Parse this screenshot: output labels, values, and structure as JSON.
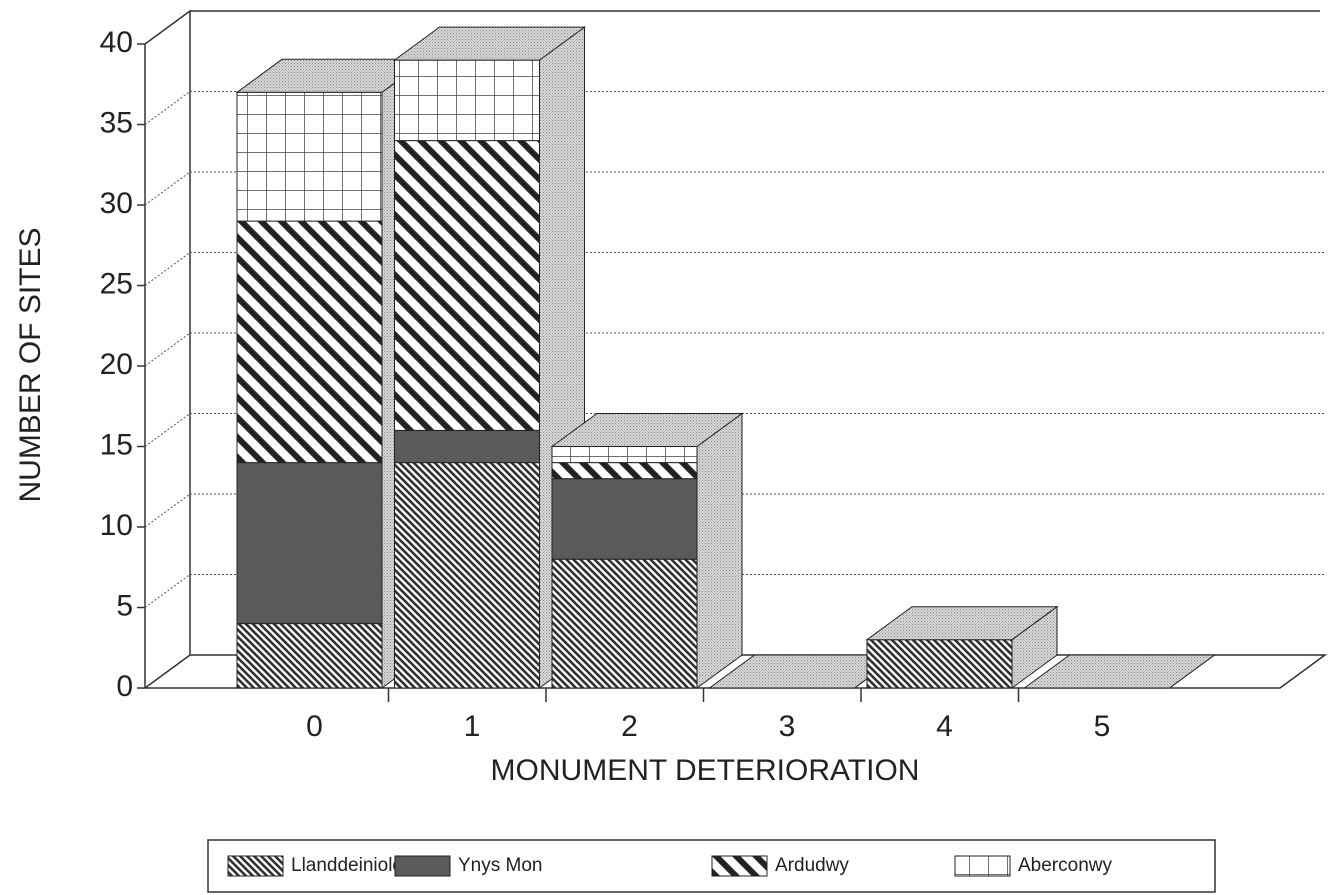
{
  "chart_data": {
    "type": "bar3d-stacked",
    "x_label": "MONUMENT DETERIORATION",
    "y_label": "NUMBER OF SITES",
    "categories": [
      "0",
      "1",
      "2",
      "3",
      "4",
      "5"
    ],
    "series": [
      {
        "name": "Llanddeiniolen",
        "color": "#333333",
        "pattern": "hatch-dense",
        "values": [
          4,
          14,
          8,
          0,
          3,
          0
        ]
      },
      {
        "name": "Ynys Mon",
        "color": "#5a5a5a",
        "pattern": "solid",
        "values": [
          10,
          2,
          5,
          0,
          0,
          0
        ]
      },
      {
        "name": "Ardudwy",
        "color": "#222222",
        "pattern": "hatch-wide",
        "values": [
          15,
          18,
          1,
          0,
          0,
          0
        ]
      },
      {
        "name": "Aberconwy",
        "color": "#444444",
        "pattern": "grid",
        "values": [
          8,
          5,
          1,
          0,
          0,
          0
        ]
      }
    ],
    "ylim": [
      0,
      40
    ],
    "yticks": [
      0,
      5,
      10,
      15,
      20,
      25,
      30,
      35,
      40
    ],
    "grid": true,
    "legend": "bottom"
  }
}
